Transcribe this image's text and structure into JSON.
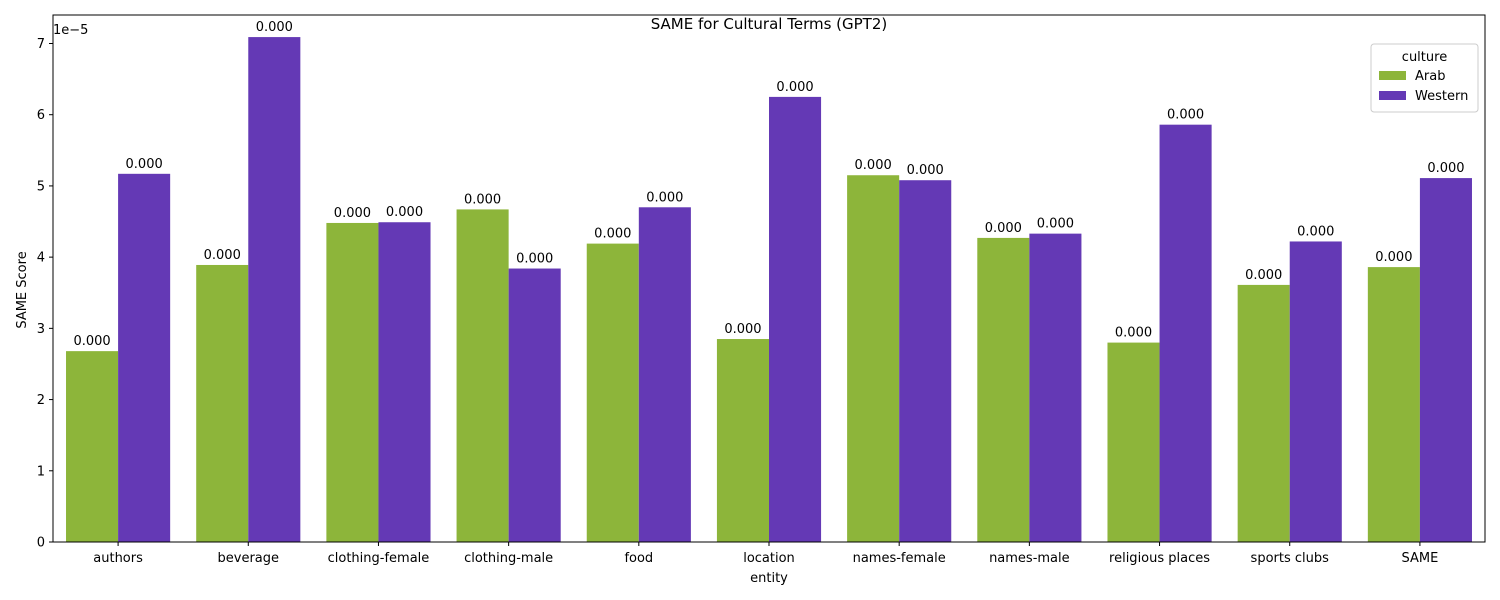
{
  "chart_data": {
    "type": "bar",
    "title": "SAME for Cultural Terms (GPT2)",
    "xlabel": "entity",
    "ylabel": "SAME Score",
    "y_offset_label": "1e−5",
    "y_scale_factor": 1e-05,
    "ylim": [
      0,
      7.4e-05
    ],
    "yticks": [
      0,
      1e-05,
      2e-05,
      3e-05,
      4e-05,
      5e-05,
      6e-05,
      7e-05
    ],
    "ytick_labels": [
      "0",
      "1",
      "2",
      "3",
      "4",
      "5",
      "6",
      "7"
    ],
    "grid": false,
    "legend": {
      "title": "culture",
      "placement": "top-right"
    },
    "categories": [
      "authors",
      "beverage",
      "clothing-female",
      "clothing-male",
      "food",
      "location",
      "names-female",
      "names-male",
      "religious places",
      "sports clubs",
      "SAME"
    ],
    "series": [
      {
        "name": "Arab",
        "color": "#8db53a",
        "values": [
          2.68e-05,
          3.89e-05,
          4.48e-05,
          4.67e-05,
          4.19e-05,
          2.85e-05,
          5.15e-05,
          4.27e-05,
          2.8e-05,
          3.61e-05,
          3.86e-05
        ],
        "data_labels": [
          "0.000",
          "0.000",
          "0.000",
          "0.000",
          "0.000",
          "0.000",
          "0.000",
          "0.000",
          "0.000",
          "0.000",
          "0.000"
        ]
      },
      {
        "name": "Western",
        "color": "#6439b5",
        "values": [
          5.17e-05,
          7.09e-05,
          4.49e-05,
          3.84e-05,
          4.7e-05,
          6.25e-05,
          5.08e-05,
          4.33e-05,
          5.86e-05,
          4.22e-05,
          5.11e-05
        ],
        "data_labels": [
          "0.000",
          "0.000",
          "0.000",
          "0.000",
          "0.000",
          "0.000",
          "0.000",
          "0.000",
          "0.000",
          "0.000",
          "0.000"
        ]
      }
    ]
  }
}
